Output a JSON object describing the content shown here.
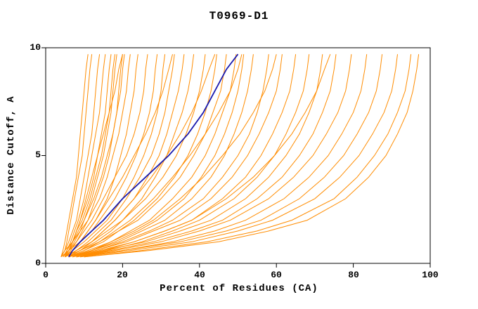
{
  "title": "T0969-D1",
  "axes": {
    "xlabel": "Percent of Residues (CA)",
    "ylabel": "Distance Cutoff, A",
    "x_ticks": [
      "0",
      "20",
      "40",
      "60",
      "80",
      "100"
    ],
    "y_ticks": [
      "0",
      "5",
      "10"
    ]
  },
  "colors": {
    "model": "#FF8C00",
    "highlight": "#1A1AAE",
    "frame": "#000000"
  },
  "chart_data": {
    "type": "line",
    "title": "T0969-D1",
    "xlabel": "Percent of Residues (CA)",
    "ylabel": "Distance Cutoff, A",
    "xlim": [
      0,
      100
    ],
    "ylim": [
      0,
      10
    ],
    "grid": false,
    "legend": "none",
    "highlight_series": "highlighted-model",
    "y_levels": [
      0.3,
      0.6,
      1,
      1.5,
      2,
      3,
      4,
      5,
      6,
      7,
      8,
      9,
      9.7
    ],
    "series": [
      {
        "name": "model-01",
        "x": [
          4,
          5,
          5.5,
          6,
          6.5,
          7.5,
          8.5,
          9.5,
          10,
          10.5,
          11,
          11.5,
          12
        ]
      },
      {
        "name": "model-02",
        "x": [
          4,
          5,
          6,
          7,
          8,
          9,
          10,
          11,
          12,
          12.5,
          13,
          13.5,
          14
        ]
      },
      {
        "name": "model-03",
        "x": [
          5,
          5.5,
          6.5,
          7.5,
          8.5,
          10,
          11,
          12,
          13,
          14,
          14.5,
          15,
          15.5
        ]
      },
      {
        "name": "model-04",
        "x": [
          4.5,
          6,
          7,
          8,
          9,
          11,
          12.5,
          13.5,
          14.5,
          15.5,
          16,
          16.5,
          17
        ]
      },
      {
        "name": "model-05",
        "x": [
          5,
          6,
          7.5,
          9,
          10,
          12,
          13.5,
          15,
          16,
          17,
          17.5,
          18,
          18.5
        ]
      },
      {
        "name": "model-06",
        "x": [
          5,
          6.5,
          8,
          9.5,
          11,
          13,
          15,
          16.5,
          17.5,
          18.5,
          19,
          19.5,
          20
        ]
      },
      {
        "name": "model-07",
        "x": [
          4,
          5,
          7,
          9,
          11,
          14,
          16,
          17.5,
          19,
          20,
          21,
          21.5,
          22
        ]
      },
      {
        "name": "model-08",
        "x": [
          5,
          7,
          9,
          11,
          13,
          16,
          18,
          19.5,
          21,
          22,
          23,
          23.5,
          24
        ]
      },
      {
        "name": "model-09",
        "x": [
          5,
          6,
          8,
          10,
          12,
          15,
          18,
          21,
          23,
          24.5,
          25.5,
          26,
          26.5
        ]
      },
      {
        "name": "model-10",
        "x": [
          4,
          6,
          9,
          12,
          14,
          18,
          21,
          23.5,
          25.5,
          27,
          28,
          28.5,
          29
        ]
      },
      {
        "name": "model-11",
        "x": [
          5,
          7,
          10,
          13,
          16,
          20,
          23,
          25.5,
          27.5,
          29,
          30,
          30.5,
          31
        ]
      },
      {
        "name": "model-12",
        "x": [
          6,
          8,
          11,
          14,
          17,
          21,
          24.5,
          27.5,
          29.5,
          31,
          32,
          33,
          33.5
        ]
      },
      {
        "name": "model-13",
        "x": [
          5,
          8,
          12,
          15,
          18,
          23,
          26.5,
          29.5,
          31.5,
          33,
          34.5,
          35.5,
          36
        ]
      },
      {
        "name": "model-14",
        "x": [
          6,
          9,
          13,
          17,
          20,
          25,
          28.5,
          31.5,
          33.5,
          35.5,
          37,
          38,
          38.5
        ]
      },
      {
        "name": "model-15",
        "x": [
          5,
          8,
          12,
          16,
          20,
          26,
          30.5,
          34,
          36.5,
          38.5,
          40,
          41,
          41.5
        ]
      },
      {
        "name": "model-16",
        "x": [
          6,
          10,
          15,
          19,
          23,
          29,
          33.5,
          37,
          39.5,
          41.5,
          43,
          44,
          44.5
        ]
      },
      {
        "name": "model-17",
        "x": [
          5,
          9,
          14,
          19,
          24,
          30,
          35,
          38.5,
          41.5,
          43.5,
          45.5,
          46.5,
          47
        ]
      },
      {
        "name": "model-18",
        "x": [
          6,
          11,
          17,
          22,
          27,
          33,
          38,
          41.5,
          44,
          46,
          48,
          49,
          49.5
        ]
      },
      {
        "name": "model-19",
        "x": [
          7,
          12,
          18,
          24,
          29,
          36,
          40.5,
          44,
          46.5,
          48.5,
          50,
          51,
          51.5
        ]
      },
      {
        "name": "model-20",
        "x": [
          6,
          12,
          19,
          25,
          31,
          38,
          43,
          46.5,
          49,
          51,
          52.5,
          53.5,
          54
        ]
      },
      {
        "name": "model-21",
        "x": [
          7,
          13,
          20,
          27,
          33,
          41,
          46,
          50,
          53,
          55,
          56.5,
          57.5,
          58
        ]
      },
      {
        "name": "model-22",
        "x": [
          6,
          13,
          21,
          28,
          35,
          43,
          48.5,
          52.5,
          55.5,
          58,
          60,
          61,
          61.5
        ]
      },
      {
        "name": "model-23",
        "x": [
          7,
          14,
          23,
          31,
          38,
          46,
          52,
          56,
          59,
          61.5,
          63.5,
          64.5,
          65
        ]
      },
      {
        "name": "model-24",
        "x": [
          8,
          16,
          25,
          33,
          40,
          49,
          55,
          59.5,
          62.5,
          65,
          67,
          68,
          68.5
        ]
      },
      {
        "name": "model-25",
        "x": [
          7,
          15,
          26,
          35,
          43,
          52,
          58,
          62.5,
          66,
          68.5,
          70.5,
          71.5,
          72
        ]
      },
      {
        "name": "model-26",
        "x": [
          8,
          17,
          28,
          38,
          46,
          55,
          61.5,
          66,
          69.5,
          72,
          74,
          75,
          75.5
        ]
      },
      {
        "name": "model-27",
        "x": [
          8,
          18,
          30,
          40,
          48,
          58,
          64.5,
          69.5,
          73,
          76,
          78,
          79,
          79.5
        ]
      },
      {
        "name": "model-28",
        "x": [
          9,
          20,
          33,
          44,
          52,
          62,
          68.5,
          73.5,
          77,
          80,
          82,
          83,
          83.5
        ]
      },
      {
        "name": "model-29",
        "x": [
          8,
          20,
          35,
          47,
          56,
          66,
          72.5,
          77.5,
          81,
          84,
          86,
          87,
          87.5
        ]
      },
      {
        "name": "model-30",
        "x": [
          9,
          22,
          38,
          50,
          59,
          70,
          76.5,
          81.5,
          85,
          88,
          90,
          91,
          91.5
        ]
      },
      {
        "name": "model-31",
        "x": [
          10,
          25,
          42,
          55,
          64,
          75,
          81,
          85.5,
          89,
          91.5,
          93.5,
          94.5,
          95
        ]
      },
      {
        "name": "model-32",
        "x": [
          10,
          27,
          45,
          58,
          68,
          78,
          84,
          88.5,
          91.5,
          94,
          95.5,
          96.5,
          97
        ]
      },
      {
        "name": "model-33",
        "x": [
          5,
          6,
          7,
          8,
          9,
          10.5,
          12,
          13.5,
          15,
          16.5,
          18,
          19,
          20
        ]
      },
      {
        "name": "model-34",
        "x": [
          5,
          7,
          9,
          11,
          13,
          16.5,
          20,
          23,
          26,
          28.5,
          30.5,
          32,
          33
        ]
      },
      {
        "name": "model-35",
        "x": [
          6,
          9,
          12,
          15,
          18,
          23,
          27.5,
          31.5,
          35,
          38,
          40.5,
          42.5,
          44
        ]
      },
      {
        "name": "model-36",
        "x": [
          6,
          10,
          14,
          18,
          22,
          28,
          33,
          37.5,
          41.5,
          45,
          48,
          50,
          51
        ]
      },
      {
        "name": "model-37",
        "x": [
          7,
          12,
          17,
          23,
          28,
          35,
          41,
          46,
          50.5,
          54,
          57,
          59,
          60
        ]
      },
      {
        "name": "model-38",
        "x": [
          8,
          15,
          23,
          31,
          38,
          47,
          54,
          59.5,
          64,
          67.5,
          70.5,
          72.5,
          74
        ]
      },
      {
        "name": "model-39",
        "x": [
          4,
          4.5,
          5,
          5.5,
          6,
          7,
          8,
          8.5,
          9,
          9.5,
          10,
          10.5,
          11
        ]
      },
      {
        "name": "model-40",
        "x": [
          5,
          6,
          7,
          8,
          9.5,
          11.5,
          13,
          14.5,
          15.5,
          16.5,
          17,
          17.5,
          18
        ]
      },
      {
        "name": "model-41",
        "x": [
          4.5,
          5.5,
          7,
          8.5,
          10,
          12.5,
          14.5,
          16,
          17.5,
          18.5,
          19.5,
          20,
          20.5
        ]
      },
      {
        "name": "highlighted-model",
        "x": [
          6,
          7,
          9,
          12,
          15,
          20,
          26,
          32,
          37,
          41,
          44,
          47,
          50
        ],
        "width": 1.8
      }
    ]
  }
}
